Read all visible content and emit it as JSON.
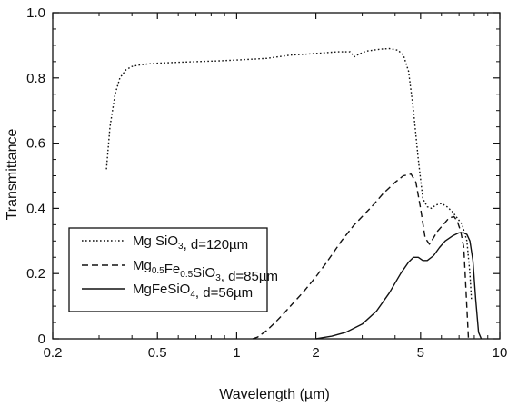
{
  "chart_data": {
    "type": "line",
    "title": "",
    "xlabel": "Wavelength (µm)",
    "ylabel": "Transmittance",
    "xscale": "log",
    "xlim": [
      0.2,
      10
    ],
    "ylim": [
      0,
      1.0
    ],
    "grid": false,
    "legend_position": "center-left",
    "x_ticks": [
      0.2,
      0.5,
      1,
      2,
      5,
      10
    ],
    "x_tick_labels": [
      "0.2",
      "0.5",
      "1",
      "2",
      "5",
      "10"
    ],
    "y_ticks": [
      0,
      0.2,
      0.4,
      0.6,
      0.8,
      1.0
    ],
    "y_tick_labels": [
      "0",
      "0.2",
      "0.4",
      "0.6",
      "0.8",
      "1.0"
    ],
    "colors": {
      "line": "#111111",
      "axes": "#111111",
      "background": "#ffffff"
    },
    "series": [
      {
        "name": "Mg SiO3, d=120µm",
        "legend_parts": [
          {
            "text": "Mg SiO",
            "sub": false
          },
          {
            "text": "3",
            "sub": true
          },
          {
            "text": ", d=120µm",
            "sub": false
          }
        ],
        "dash": "dotted",
        "x": [
          0.32,
          0.33,
          0.345,
          0.36,
          0.38,
          0.4,
          0.43,
          0.46,
          0.5,
          0.6,
          0.7,
          0.85,
          1.0,
          1.3,
          1.6,
          2.0,
          2.4,
          2.7,
          2.8,
          2.9,
          3.1,
          3.5,
          3.8,
          4.1,
          4.3,
          4.5,
          4.7,
          4.9,
          5.1,
          5.3,
          5.5,
          5.7,
          6.0,
          6.3,
          6.6,
          6.9,
          7.2,
          7.5,
          7.7,
          7.8
        ],
        "y": [
          0.52,
          0.65,
          0.75,
          0.8,
          0.825,
          0.835,
          0.84,
          0.843,
          0.845,
          0.848,
          0.85,
          0.852,
          0.855,
          0.86,
          0.87,
          0.875,
          0.88,
          0.88,
          0.865,
          0.872,
          0.882,
          0.888,
          0.89,
          0.885,
          0.87,
          0.82,
          0.7,
          0.55,
          0.43,
          0.405,
          0.4,
          0.41,
          0.415,
          0.405,
          0.39,
          0.37,
          0.35,
          0.3,
          0.2,
          0.12
        ]
      },
      {
        "name": "Mg0.5Fe0.5SiO3, d=85µm",
        "legend_parts": [
          {
            "text": "Mg",
            "sub": false
          },
          {
            "text": "0.5",
            "sub": true
          },
          {
            "text": "Fe",
            "sub": false
          },
          {
            "text": "0.5",
            "sub": true
          },
          {
            "text": "SiO",
            "sub": false
          },
          {
            "text": "3",
            "sub": true
          },
          {
            "text": ", d=85µm",
            "sub": false
          }
        ],
        "dash": "dashed",
        "x": [
          1.15,
          1.2,
          1.3,
          1.4,
          1.5,
          1.6,
          1.8,
          2.0,
          2.2,
          2.5,
          2.8,
          3.0,
          3.3,
          3.6,
          4.0,
          4.3,
          4.6,
          4.8,
          5.0,
          5.2,
          5.4,
          5.6,
          5.8,
          6.1,
          6.4,
          6.7,
          6.9,
          7.1,
          7.3,
          7.6
        ],
        "y": [
          0.0,
          0.005,
          0.025,
          0.05,
          0.075,
          0.1,
          0.145,
          0.19,
          0.235,
          0.3,
          0.35,
          0.375,
          0.41,
          0.445,
          0.48,
          0.5,
          0.505,
          0.48,
          0.4,
          0.31,
          0.29,
          0.31,
          0.33,
          0.35,
          0.37,
          0.375,
          0.36,
          0.33,
          0.28,
          0.0
        ]
      },
      {
        "name": "MgFeSiO4, d=56µm",
        "legend_parts": [
          {
            "text": "MgFeSiO",
            "sub": false
          },
          {
            "text": "4",
            "sub": true
          },
          {
            "text": ", d=56µm",
            "sub": false
          }
        ],
        "dash": "solid",
        "x": [
          2.0,
          2.1,
          2.3,
          2.6,
          3.0,
          3.4,
          3.8,
          4.2,
          4.5,
          4.7,
          4.9,
          5.1,
          5.3,
          5.6,
          5.9,
          6.2,
          6.6,
          7.0,
          7.3,
          7.5,
          7.7,
          7.9,
          8.1,
          8.3,
          8.5
        ],
        "y": [
          0.0,
          0.003,
          0.008,
          0.02,
          0.045,
          0.085,
          0.14,
          0.2,
          0.235,
          0.25,
          0.25,
          0.24,
          0.24,
          0.255,
          0.28,
          0.3,
          0.315,
          0.325,
          0.325,
          0.32,
          0.3,
          0.24,
          0.12,
          0.02,
          0.0
        ]
      }
    ]
  }
}
